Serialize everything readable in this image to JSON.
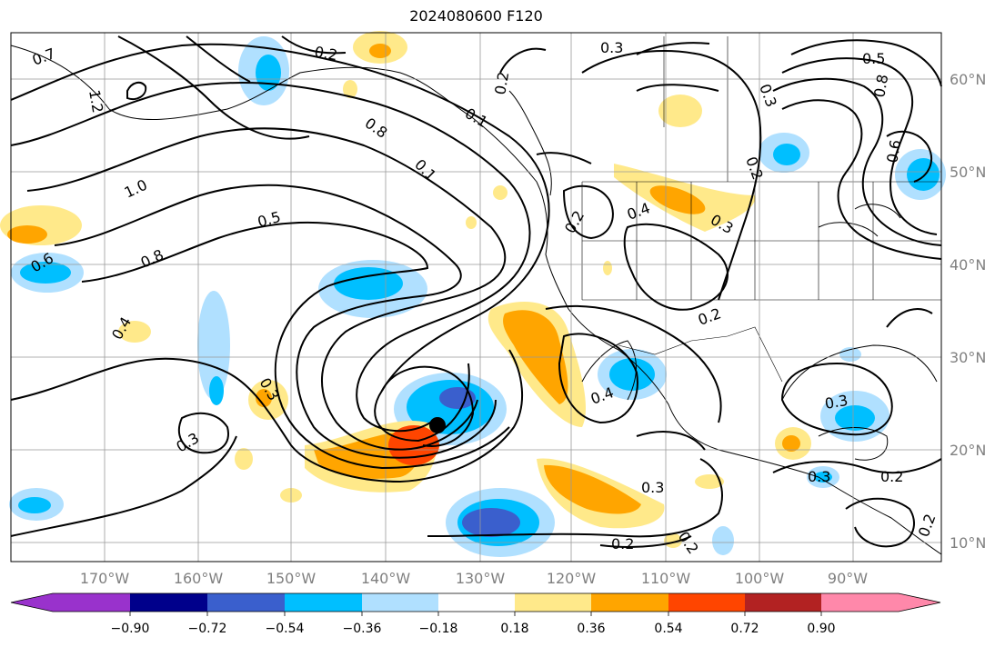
{
  "title": "2024080600 F120",
  "lat_labels": [
    "60°N",
    "50°N",
    "40°N",
    "30°N",
    "20°N",
    "10°N"
  ],
  "lon_labels": [
    "170°W",
    "160°W",
    "150°W",
    "140°W",
    "130°W",
    "120°W",
    "110°W",
    "100°W",
    "90°W"
  ],
  "colorbar": {
    "ticks": [
      "−0.90",
      "−0.72",
      "−0.54",
      "−0.36",
      "−0.18",
      "0.18",
      "0.36",
      "0.54",
      "0.72",
      "0.90"
    ],
    "colors": [
      "#9932cc",
      "#00008b",
      "#3a5fcd",
      "#00bfff",
      "#b0e0ff",
      "#ffffff",
      "#ffe98a",
      "#ffa500",
      "#ff4500",
      "#b22222",
      "#ff88aa"
    ]
  },
  "contour_labels": [
    "0.7",
    "0.2",
    "0.3",
    "0.5",
    "1.2",
    "0.8",
    "1.0",
    "0.5",
    "0.6",
    "0.8",
    "0.4",
    "0.3",
    "0.3",
    "0.2",
    "0.2",
    "0.4",
    "0.3",
    "0.2",
    "0.4",
    "0.3",
    "0.3",
    "0.2",
    "0.2",
    "0.2",
    "0.3",
    "0.3",
    "0.2",
    "0.8",
    "0.1",
    "0.6",
    "0.1",
    "0.2"
  ],
  "storm_marker": {
    "lat": 22.5,
    "lon": -134.5
  }
}
